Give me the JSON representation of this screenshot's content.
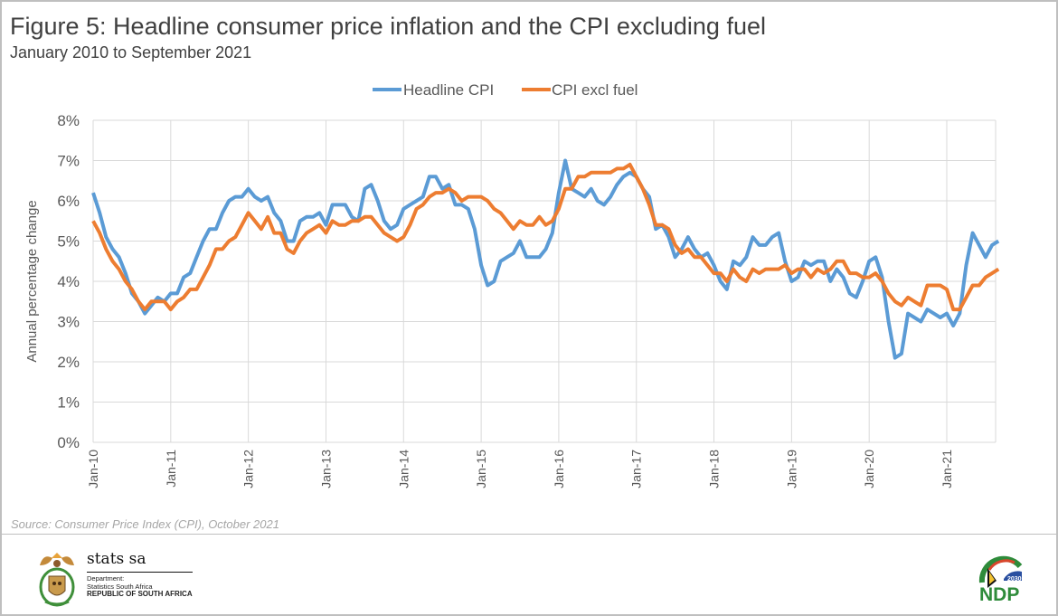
{
  "header": {
    "title": "Figure 5: Headline consumer price inflation and the CPI excluding fuel",
    "subtitle": "January 2010 to September 2021"
  },
  "footer": {
    "source": "Source: Consumer Price Index (CPI), October 2021",
    "stats_logo_name": "stats sa",
    "dept_line1": "Department:",
    "dept_line2": "Statistics South Africa",
    "dept_line3": "REPUBLIC OF SOUTH AFRICA",
    "ndp_logo_text": "NDP",
    "ndp_year": "2030"
  },
  "chart_data": {
    "type": "line",
    "title": "Figure 5: Headline consumer price inflation and the CPI excluding fuel",
    "subtitle": "January 2010 to September 2021",
    "xlabel": "",
    "ylabel": "Annual percentage change",
    "ylim": [
      0,
      8
    ],
    "y_ticks": [
      "0%",
      "1%",
      "2%",
      "3%",
      "4%",
      "5%",
      "6%",
      "7%",
      "8%"
    ],
    "x_ticks": [
      "Jan-10",
      "Jan-11",
      "Jan-12",
      "Jan-13",
      "Jan-14",
      "Jan-15",
      "Jan-16",
      "Jan-17",
      "Jan-18",
      "Jan-19",
      "Jan-20",
      "Jan-21"
    ],
    "x_start": "Jan-2010",
    "x_end": "Sep-2021",
    "grid": true,
    "legend_position": "top-center",
    "series": [
      {
        "name": "Headline CPI",
        "color": "#5b9bd5",
        "values": [
          6.2,
          5.7,
          5.1,
          4.8,
          4.6,
          4.2,
          3.7,
          3.5,
          3.2,
          3.4,
          3.6,
          3.5,
          3.7,
          3.7,
          4.1,
          4.2,
          4.6,
          5.0,
          5.3,
          5.3,
          5.7,
          6.0,
          6.1,
          6.1,
          6.3,
          6.1,
          6.0,
          6.1,
          5.7,
          5.5,
          5.0,
          5.0,
          5.5,
          5.6,
          5.6,
          5.7,
          5.4,
          5.9,
          5.9,
          5.9,
          5.6,
          5.5,
          6.3,
          6.4,
          6.0,
          5.5,
          5.3,
          5.4,
          5.8,
          5.9,
          6.0,
          6.1,
          6.6,
          6.6,
          6.3,
          6.4,
          5.9,
          5.9,
          5.8,
          5.3,
          4.4,
          3.9,
          4.0,
          4.5,
          4.6,
          4.7,
          5.0,
          4.6,
          4.6,
          4.6,
          4.8,
          5.2,
          6.2,
          7.0,
          6.3,
          6.2,
          6.1,
          6.3,
          6.0,
          5.9,
          6.1,
          6.4,
          6.6,
          6.7,
          6.6,
          6.3,
          6.1,
          5.3,
          5.4,
          5.1,
          4.6,
          4.8,
          5.1,
          4.8,
          4.6,
          4.7,
          4.4,
          4.0,
          3.8,
          4.5,
          4.4,
          4.6,
          5.1,
          4.9,
          4.9,
          5.1,
          5.2,
          4.5,
          4.0,
          4.1,
          4.5,
          4.4,
          4.5,
          4.5,
          4.0,
          4.3,
          4.1,
          3.7,
          3.6,
          4.0,
          4.5,
          4.6,
          4.1,
          3.0,
          2.1,
          2.2,
          3.2,
          3.1,
          3.0,
          3.3,
          3.2,
          3.1,
          3.2,
          2.9,
          3.2,
          4.4,
          5.2,
          4.9,
          4.6,
          4.9,
          5.0
        ]
      },
      {
        "name": "CPI excl fuel",
        "color": "#ed7d31",
        "values": [
          5.5,
          5.2,
          4.8,
          4.5,
          4.3,
          4.0,
          3.8,
          3.5,
          3.3,
          3.5,
          3.5,
          3.5,
          3.3,
          3.5,
          3.6,
          3.8,
          3.8,
          4.1,
          4.4,
          4.8,
          4.8,
          5.0,
          5.1,
          5.4,
          5.7,
          5.5,
          5.3,
          5.6,
          5.2,
          5.2,
          4.8,
          4.7,
          5.0,
          5.2,
          5.3,
          5.4,
          5.2,
          5.5,
          5.4,
          5.4,
          5.5,
          5.5,
          5.6,
          5.6,
          5.4,
          5.2,
          5.1,
          5.0,
          5.1,
          5.4,
          5.8,
          5.9,
          6.1,
          6.2,
          6.2,
          6.3,
          6.2,
          6.0,
          6.1,
          6.1,
          6.1,
          6.0,
          5.8,
          5.7,
          5.5,
          5.3,
          5.5,
          5.4,
          5.4,
          5.6,
          5.4,
          5.5,
          5.8,
          6.3,
          6.3,
          6.6,
          6.6,
          6.7,
          6.7,
          6.7,
          6.7,
          6.8,
          6.8,
          6.9,
          6.6,
          6.3,
          5.9,
          5.4,
          5.4,
          5.3,
          4.9,
          4.7,
          4.8,
          4.6,
          4.6,
          4.4,
          4.2,
          4.2,
          4.0,
          4.3,
          4.1,
          4.0,
          4.3,
          4.2,
          4.3,
          4.3,
          4.3,
          4.4,
          4.2,
          4.3,
          4.3,
          4.1,
          4.3,
          4.2,
          4.3,
          4.5,
          4.5,
          4.2,
          4.2,
          4.1,
          4.1,
          4.2,
          4.0,
          3.7,
          3.5,
          3.4,
          3.6,
          3.5,
          3.4,
          3.9,
          3.9,
          3.9,
          3.8,
          3.3,
          3.3,
          3.6,
          3.9,
          3.9,
          4.1,
          4.2,
          4.3
        ]
      }
    ]
  }
}
